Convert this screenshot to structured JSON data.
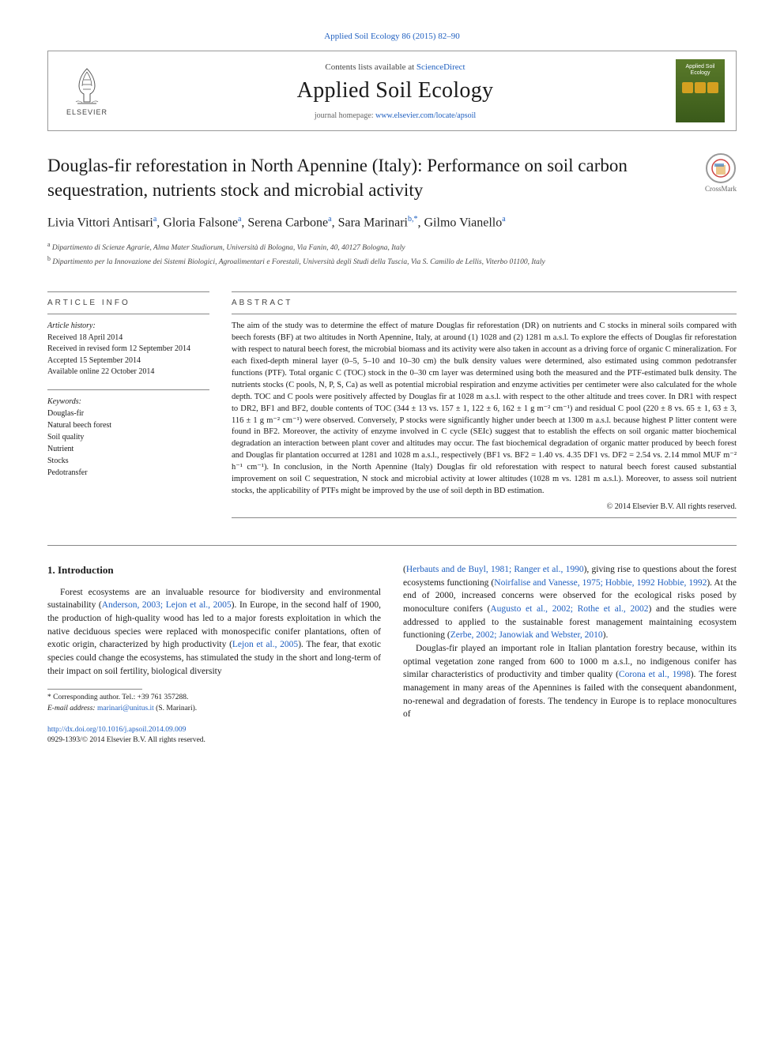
{
  "header": {
    "top_link": "Applied Soil Ecology 86 (2015) 82–90",
    "contents_line_prefix": "Contents lists available at ",
    "contents_link": "ScienceDirect",
    "journal_name": "Applied Soil Ecology",
    "homepage_prefix": "journal homepage: ",
    "homepage_url": "www.elsevier.com/locate/apsoil",
    "publisher": "ELSEVIER",
    "cover_text": "Applied Soil Ecology"
  },
  "crossmark": {
    "label": "CrossMark"
  },
  "article": {
    "title": "Douglas-fir reforestation in North Apennine (Italy): Performance on soil carbon sequestration, nutrients stock and microbial activity",
    "authors_html": "Livia Vittori Antisari<sup>a</sup>, Gloria Falsone<sup>a</sup>, Serena Carbone<sup>a</sup>, Sara Marinari<sup>b,*</sup>, Gilmo Vianello<sup>a</sup>",
    "affiliations": {
      "a": "Dipartimento di Scienze Agrarie, Alma Mater Studiorum, Università di Bologna, Via Fanin, 40, 40127 Bologna, Italy",
      "b": "Dipartimento per la Innovazione dei Sistemi Biologici, Agroalimentari e Forestali, Università degli Studi della Tuscia, Via S. Camillo de Lellis, Viterbo 01100, Italy"
    }
  },
  "info": {
    "heading": "ARTICLE INFO",
    "history_label": "Article history:",
    "history": [
      "Received 18 April 2014",
      "Received in revised form 12 September 2014",
      "Accepted 15 September 2014",
      "Available online 22 October 2014"
    ],
    "keywords_label": "Keywords:",
    "keywords": [
      "Douglas-fir",
      "Natural beech forest",
      "Soil quality",
      "Nutrient",
      "Stocks",
      "Pedotransfer"
    ]
  },
  "abstract": {
    "heading": "ABSTRACT",
    "text": "The aim of the study was to determine the effect of mature Douglas fir reforestation (DR) on nutrients and C stocks in mineral soils compared with beech forests (BF) at two altitudes in North Apennine, Italy, at around (1) 1028 and (2) 1281 m a.s.l. To explore the effects of Douglas fir reforestation with respect to natural beech forest, the microbial biomass and its activity were also taken in account as a driving force of organic C mineralization. For each fixed-depth mineral layer (0–5, 5–10 and 10–30 cm) the bulk density values were determined, also estimated using common pedotransfer functions (PTF). Total organic C (TOC) stock in the 0–30 cm layer was determined using both the measured and the PTF-estimated bulk density. The nutrients stocks (C pools, N, P, S, Ca) as well as potential microbial respiration and enzyme activities per centimeter were also calculated for the whole depth. TOC and C pools were positively affected by Douglas fir at 1028 m a.s.l. with respect to the other altitude and trees cover. In DR1 with respect to DR2, BF1 and BF2, double contents of TOC (344 ± 13 vs. 157 ± 1, 122 ± 6, 162 ± 1 g m⁻² cm⁻¹) and residual C pool (220 ± 8 vs. 65 ± 1, 63 ± 3, 116 ± 1 g m⁻² cm⁻¹) were observed. Conversely, P stocks were significantly higher under beech at 1300 m a.s.l. because highest P litter content were found in BF2. Moreover, the activity of enzyme involved in C cycle (SEIc) suggest that to establish the effects on soil organic matter biochemical degradation an interaction between plant cover and altitudes may occur. The fast biochemical degradation of organic matter produced by beech forest and Douglas fir plantation occurred at 1281 and 1028 m a.s.l., respectively (BF1 vs. BF2 = 1.40 vs. 4.35 DF1 vs. DF2 = 2.54 vs. 2.14 mmol MUF m⁻² h⁻¹ cm⁻¹). In conclusion, in the North Apennine (Italy) Douglas fir old reforestation with respect to natural beech forest caused substantial improvement on soil C sequestration, N stock and microbial activity at lower altitudes (1028 m vs. 1281 m a.s.l.). Moreover, to assess soil nutrient stocks, the applicability of PTFs might be improved by the use of soil depth in BD estimation.",
    "copyright": "© 2014 Elsevier B.V. All rights reserved."
  },
  "body": {
    "section_heading": "1. Introduction",
    "col1_p1": "Forest ecosystems are an invaluable resource for biodiversity and environmental sustainability (Anderson, 2003; Lejon et al., 2005). In Europe, in the second half of 1900, the production of high-quality wood has led to a major forests exploitation in which the native deciduous species were replaced with monospecific conifer plantations, often of exotic origin, characterized by high productivity (Lejon et al., 2005). The fear, that exotic species could change the ecosystems, has stimulated the study in the short and long-term of their impact on soil fertility, biological diversity",
    "col2_p1": "(Herbauts and de Buyl, 1981; Ranger et al., 1990), giving rise to questions about the forest ecosystems functioning (Noirfalise and Vanesse, 1975; Hobbie, 1992 Hobbie, 1992). At the end of 2000, increased concerns were observed for the ecological risks posed by monoculture conifers (Augusto et al., 2002; Rothe et al., 2002) and the studies were addressed to applied to the sustainable forest management maintaining ecosystem functioning (Zerbe, 2002; Janowiak and Webster, 2010).",
    "col2_p2": "Douglas-fir played an important role in Italian plantation forestry because, within its optimal vegetation zone ranged from 600 to 1000 m a.s.l., no indigenous conifer has similar characteristics of productivity and timber quality (Corona et al., 1998). The forest management in many areas of the Apennines is failed with the consequent abandonment, no-renewal and degradation of forests. The tendency in Europe is to replace monocultures of"
  },
  "footnote": {
    "corresponding": "* Corresponding author. Tel.: +39 761 357288.",
    "email_label": "E-mail address: ",
    "email": "marinari@unitus.it",
    "email_suffix": " (S. Marinari)."
  },
  "footer": {
    "doi": "http://dx.doi.org/10.1016/j.apsoil.2014.09.009",
    "issn_line": "0929-1393/© 2014 Elsevier B.V. All rights reserved."
  },
  "colors": {
    "link": "#2060c0",
    "text": "#1a1a1a",
    "muted": "#666666",
    "border": "#888888",
    "cover_bg_top": "#5a7a2a",
    "cover_bg_bottom": "#3a5a1a",
    "cover_accent": "#d4a020"
  }
}
